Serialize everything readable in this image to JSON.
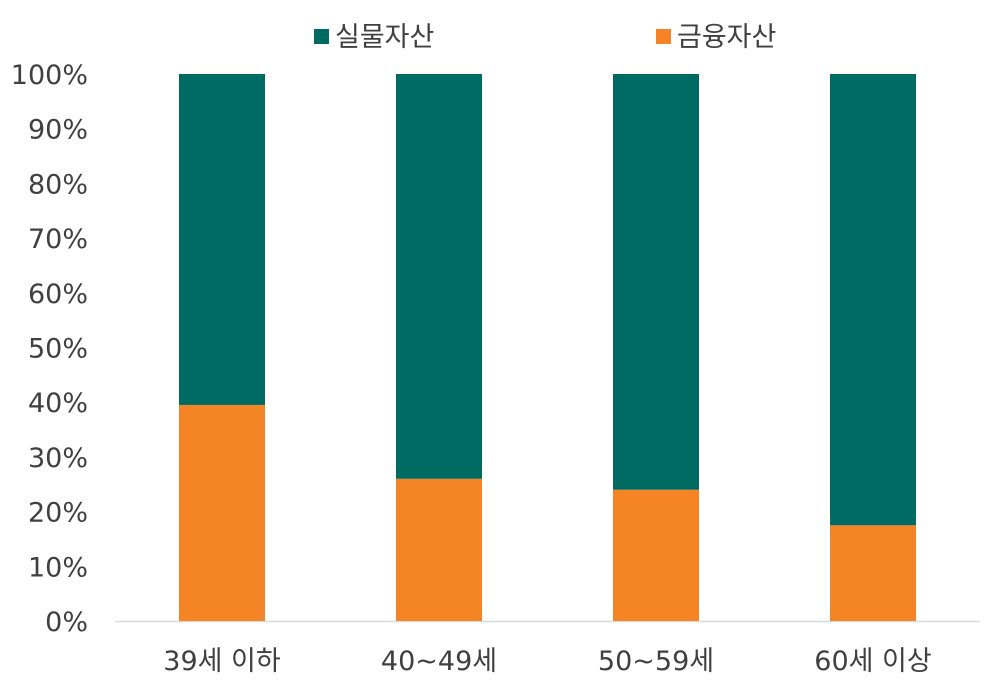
{
  "chart_data": {
    "type": "bar",
    "stacked": true,
    "percent_stacked": true,
    "categories": [
      "39세 이하",
      "40~49세",
      "50~59세",
      "60세 이상"
    ],
    "series": [
      {
        "name": "금융자산",
        "color": "#f58426",
        "values": [
          39.5,
          26,
          24,
          17.5
        ]
      },
      {
        "name": "실물자산",
        "color": "#006b63",
        "values": [
          60.5,
          74,
          76,
          82.5
        ]
      }
    ],
    "legend_order": [
      "실물자산",
      "금융자산"
    ],
    "legend_position": "top",
    "y_ticks": [
      "0%",
      "10%",
      "20%",
      "30%",
      "40%",
      "50%",
      "60%",
      "70%",
      "80%",
      "90%",
      "100%"
    ],
    "ylim": [
      0,
      100
    ],
    "grid": false
  }
}
